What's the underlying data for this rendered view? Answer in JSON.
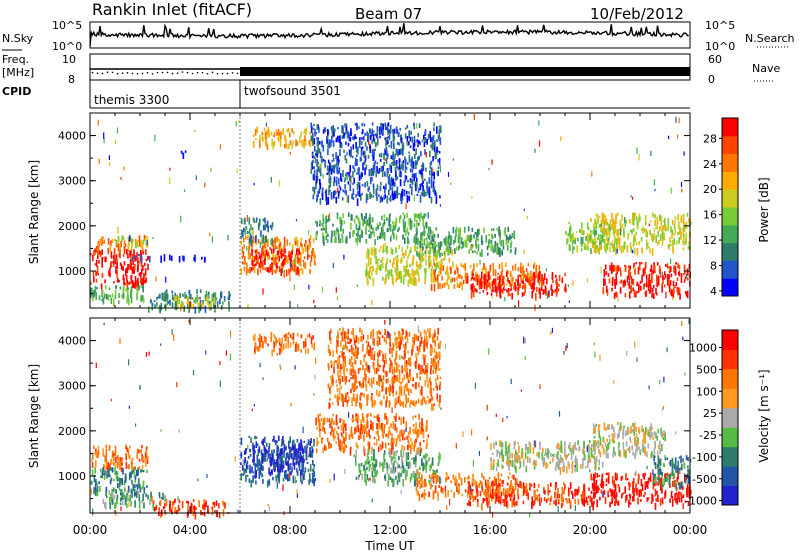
{
  "header": {
    "title": "Rankin Inlet (fitACF)",
    "beam": "Beam 07",
    "date": "10/Feb/2012"
  },
  "summary_panels": {
    "nsky_label": "N.Sky",
    "nsky_ticks": [
      "10^5",
      "10^0"
    ],
    "nsearch_label": "N.Search",
    "freq_label_top": "Freq.",
    "freq_label_unit": "[MHz]",
    "freq_ticks": [
      "10",
      "8"
    ],
    "nave_label": "Nave",
    "nave_ticks": [
      "60",
      "0"
    ],
    "cpid_label": "CPID",
    "cpid_modes": [
      {
        "name": "themis 3300",
        "start_hour": 0
      },
      {
        "name": "twofsound 3501",
        "start_hour": 6
      }
    ]
  },
  "chart_data": [
    {
      "type": "heatmap",
      "panel": "power",
      "ylabel": "Slant Range [km]",
      "yticks": [
        1000,
        2000,
        3000,
        4000
      ],
      "ylim": [
        180,
        4500
      ],
      "xlim": [
        0,
        24
      ],
      "colorbar_label": "Power [dB]",
      "colorbar_ticks": [
        "28",
        "24",
        "20",
        "16",
        "12",
        "8",
        "4"
      ],
      "colorscale": [
        "#0000ff",
        "#2255cc",
        "#2e7d6a",
        "#44aa55",
        "#77cc33",
        "#cccc22",
        "#ffaa00",
        "#ff7700",
        "#ff4400",
        "#ff0000"
      ],
      "regions": [
        {
          "t": [
            0.0,
            2.3
          ],
          "r": [
            700,
            1500
          ],
          "level": 9
        },
        {
          "t": [
            0.2,
            2.3
          ],
          "r": [
            1500,
            1800
          ],
          "level": 7
        },
        {
          "t": [
            1.0,
            2.3
          ],
          "r": [
            1600,
            1800
          ],
          "level": 5
        },
        {
          "t": [
            0.0,
            2.2
          ],
          "r": [
            380,
            700
          ],
          "level": 3
        },
        {
          "t": [
            2.3,
            5.6
          ],
          "r": [
            200,
            600
          ],
          "level": 2
        },
        {
          "t": [
            3.2,
            5.0
          ],
          "r": [
            260,
            500
          ],
          "level": 5
        },
        {
          "t": [
            1.6,
            4.6
          ],
          "r": [
            1300,
            1380
          ],
          "level": 0
        },
        {
          "t": [
            3.6,
            3.8
          ],
          "r": [
            3550,
            3750
          ],
          "level": 0
        },
        {
          "t": [
            6.0,
            9.0
          ],
          "r": [
            1000,
            1800
          ],
          "level": 7
        },
        {
          "t": [
            6.4,
            8.4
          ],
          "r": [
            1050,
            1500
          ],
          "level": 9
        },
        {
          "t": [
            6.0,
            7.3
          ],
          "r": [
            1700,
            2200
          ],
          "level": 2
        },
        {
          "t": [
            9.0,
            13.5
          ],
          "r": [
            1700,
            2300
          ],
          "level": 3
        },
        {
          "t": [
            11.0,
            14.5
          ],
          "r": [
            800,
            1600
          ],
          "level": 5
        },
        {
          "t": [
            13.5,
            18.0
          ],
          "r": [
            700,
            1200
          ],
          "level": 7
        },
        {
          "t": [
            15.0,
            19.0
          ],
          "r": [
            500,
            1000
          ],
          "level": 9
        },
        {
          "t": [
            13.0,
            17.0
          ],
          "r": [
            1400,
            2000
          ],
          "level": 3
        },
        {
          "t": [
            19.0,
            21.0
          ],
          "r": [
            1500,
            2100
          ],
          "level": 4
        },
        {
          "t": [
            20.5,
            24.0
          ],
          "r": [
            500,
            1200
          ],
          "level": 9
        },
        {
          "t": [
            20.0,
            24.0
          ],
          "r": [
            1500,
            2300
          ],
          "level": 5
        },
        {
          "t": [
            6.5,
            9.0
          ],
          "r": [
            3800,
            4200
          ],
          "level": 6
        },
        {
          "t": [
            8.8,
            14.0
          ],
          "r": [
            2600,
            4300
          ],
          "level": 1
        }
      ]
    },
    {
      "type": "heatmap",
      "panel": "velocity",
      "ylabel": "Slant Range [km]",
      "yticks": [
        1000,
        2000,
        3000,
        4000
      ],
      "ylim": [
        180,
        4500
      ],
      "xlim": [
        0,
        24
      ],
      "xticks": [
        "00:00",
        "04:00",
        "08:00",
        "12:00",
        "16:00",
        "20:00",
        "00:00"
      ],
      "xlabel": "Time UT",
      "colorbar_label": "Velocity [m s⁻¹]",
      "colorbar_ticks": [
        "1000",
        "500",
        "100",
        "25",
        "-25",
        "-100",
        "-500",
        "-1000"
      ],
      "colorscale": [
        "#2222cc",
        "#2255aa",
        "#2e7d6a",
        "#55bb44",
        "#aaaaaa",
        "#ff9922",
        "#ff7700",
        "#ff3300",
        "#ff0000"
      ],
      "regions": [
        {
          "t": [
            0.0,
            2.3
          ],
          "r": [
            1200,
            1700
          ],
          "level": 6
        },
        {
          "t": [
            0.0,
            2.3
          ],
          "r": [
            700,
            1200
          ],
          "level": 2
        },
        {
          "t": [
            0.5,
            3.0
          ],
          "r": [
            380,
            700
          ],
          "level": 3
        },
        {
          "t": [
            2.5,
            5.5
          ],
          "r": [
            200,
            500
          ],
          "level": 7
        },
        {
          "t": [
            6.0,
            9.0
          ],
          "r": [
            900,
            1900
          ],
          "level": 1
        },
        {
          "t": [
            6.5,
            8.5
          ],
          "r": [
            1100,
            1700
          ],
          "level": 0
        },
        {
          "t": [
            9.0,
            13.5
          ],
          "r": [
            1600,
            2400
          ],
          "level": 6
        },
        {
          "t": [
            10.5,
            14.0
          ],
          "r": [
            900,
            1600
          ],
          "level": 3
        },
        {
          "t": [
            13.0,
            17.0
          ],
          "r": [
            600,
            1100
          ],
          "level": 6
        },
        {
          "t": [
            15.0,
            20.0
          ],
          "r": [
            400,
            900
          ],
          "level": 7
        },
        {
          "t": [
            16.0,
            20.5
          ],
          "r": [
            1200,
            1800
          ],
          "level": 4
        },
        {
          "t": [
            20.0,
            24.0
          ],
          "r": [
            400,
            1100
          ],
          "level": 8
        },
        {
          "t": [
            20.0,
            23.0
          ],
          "r": [
            1500,
            2200
          ],
          "level": 4
        },
        {
          "t": [
            22.5,
            24.0
          ],
          "r": [
            800,
            1500
          ],
          "level": 2
        },
        {
          "t": [
            6.5,
            9.0
          ],
          "r": [
            3800,
            4200
          ],
          "level": 6
        },
        {
          "t": [
            9.5,
            14.0
          ],
          "r": [
            2600,
            4300
          ],
          "level": 6
        }
      ]
    }
  ]
}
